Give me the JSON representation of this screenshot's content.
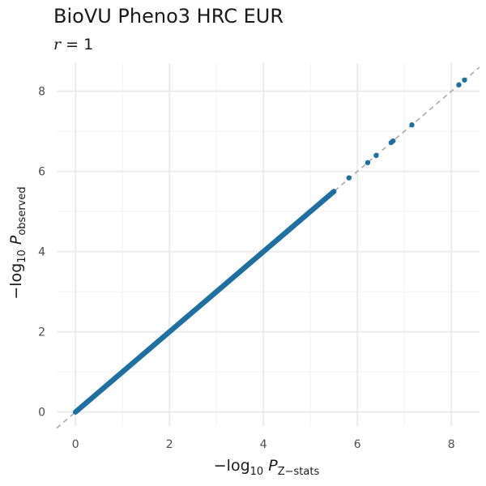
{
  "title": "BioVU Pheno3 HRC EUR",
  "subtitle": {
    "symbol": "r",
    "operator": " = ",
    "value": "1"
  },
  "chart_data": {
    "type": "scatter",
    "title": "BioVU Pheno3 HRC EUR",
    "subtitle": "r = 1",
    "xlabel": {
      "prefix": "−log",
      "base": "10",
      "var": "P",
      "subscript": "Z−stats"
    },
    "ylabel": {
      "prefix": "−log",
      "base": "10",
      "var": "P",
      "subscript": "observed"
    },
    "xlim": [
      -0.4,
      8.6
    ],
    "ylim": [
      -0.35,
      8.7
    ],
    "xticks": [
      0,
      2,
      4,
      6,
      8
    ],
    "yticks": [
      0,
      2,
      4,
      6,
      8
    ],
    "grid": true,
    "reference_line": {
      "slope": 1,
      "intercept": 0,
      "style": "dashed",
      "color": "#aaaaaa"
    },
    "point_color": "#1f6fa0",
    "dense_range": [
      0,
      5.5
    ],
    "points": [
      [
        5.82,
        5.84
      ],
      [
        6.22,
        6.22
      ],
      [
        6.4,
        6.4
      ],
      [
        6.72,
        6.72
      ],
      [
        6.76,
        6.76
      ],
      [
        7.16,
        7.16
      ],
      [
        8.16,
        8.16
      ],
      [
        8.28,
        8.28
      ]
    ]
  }
}
